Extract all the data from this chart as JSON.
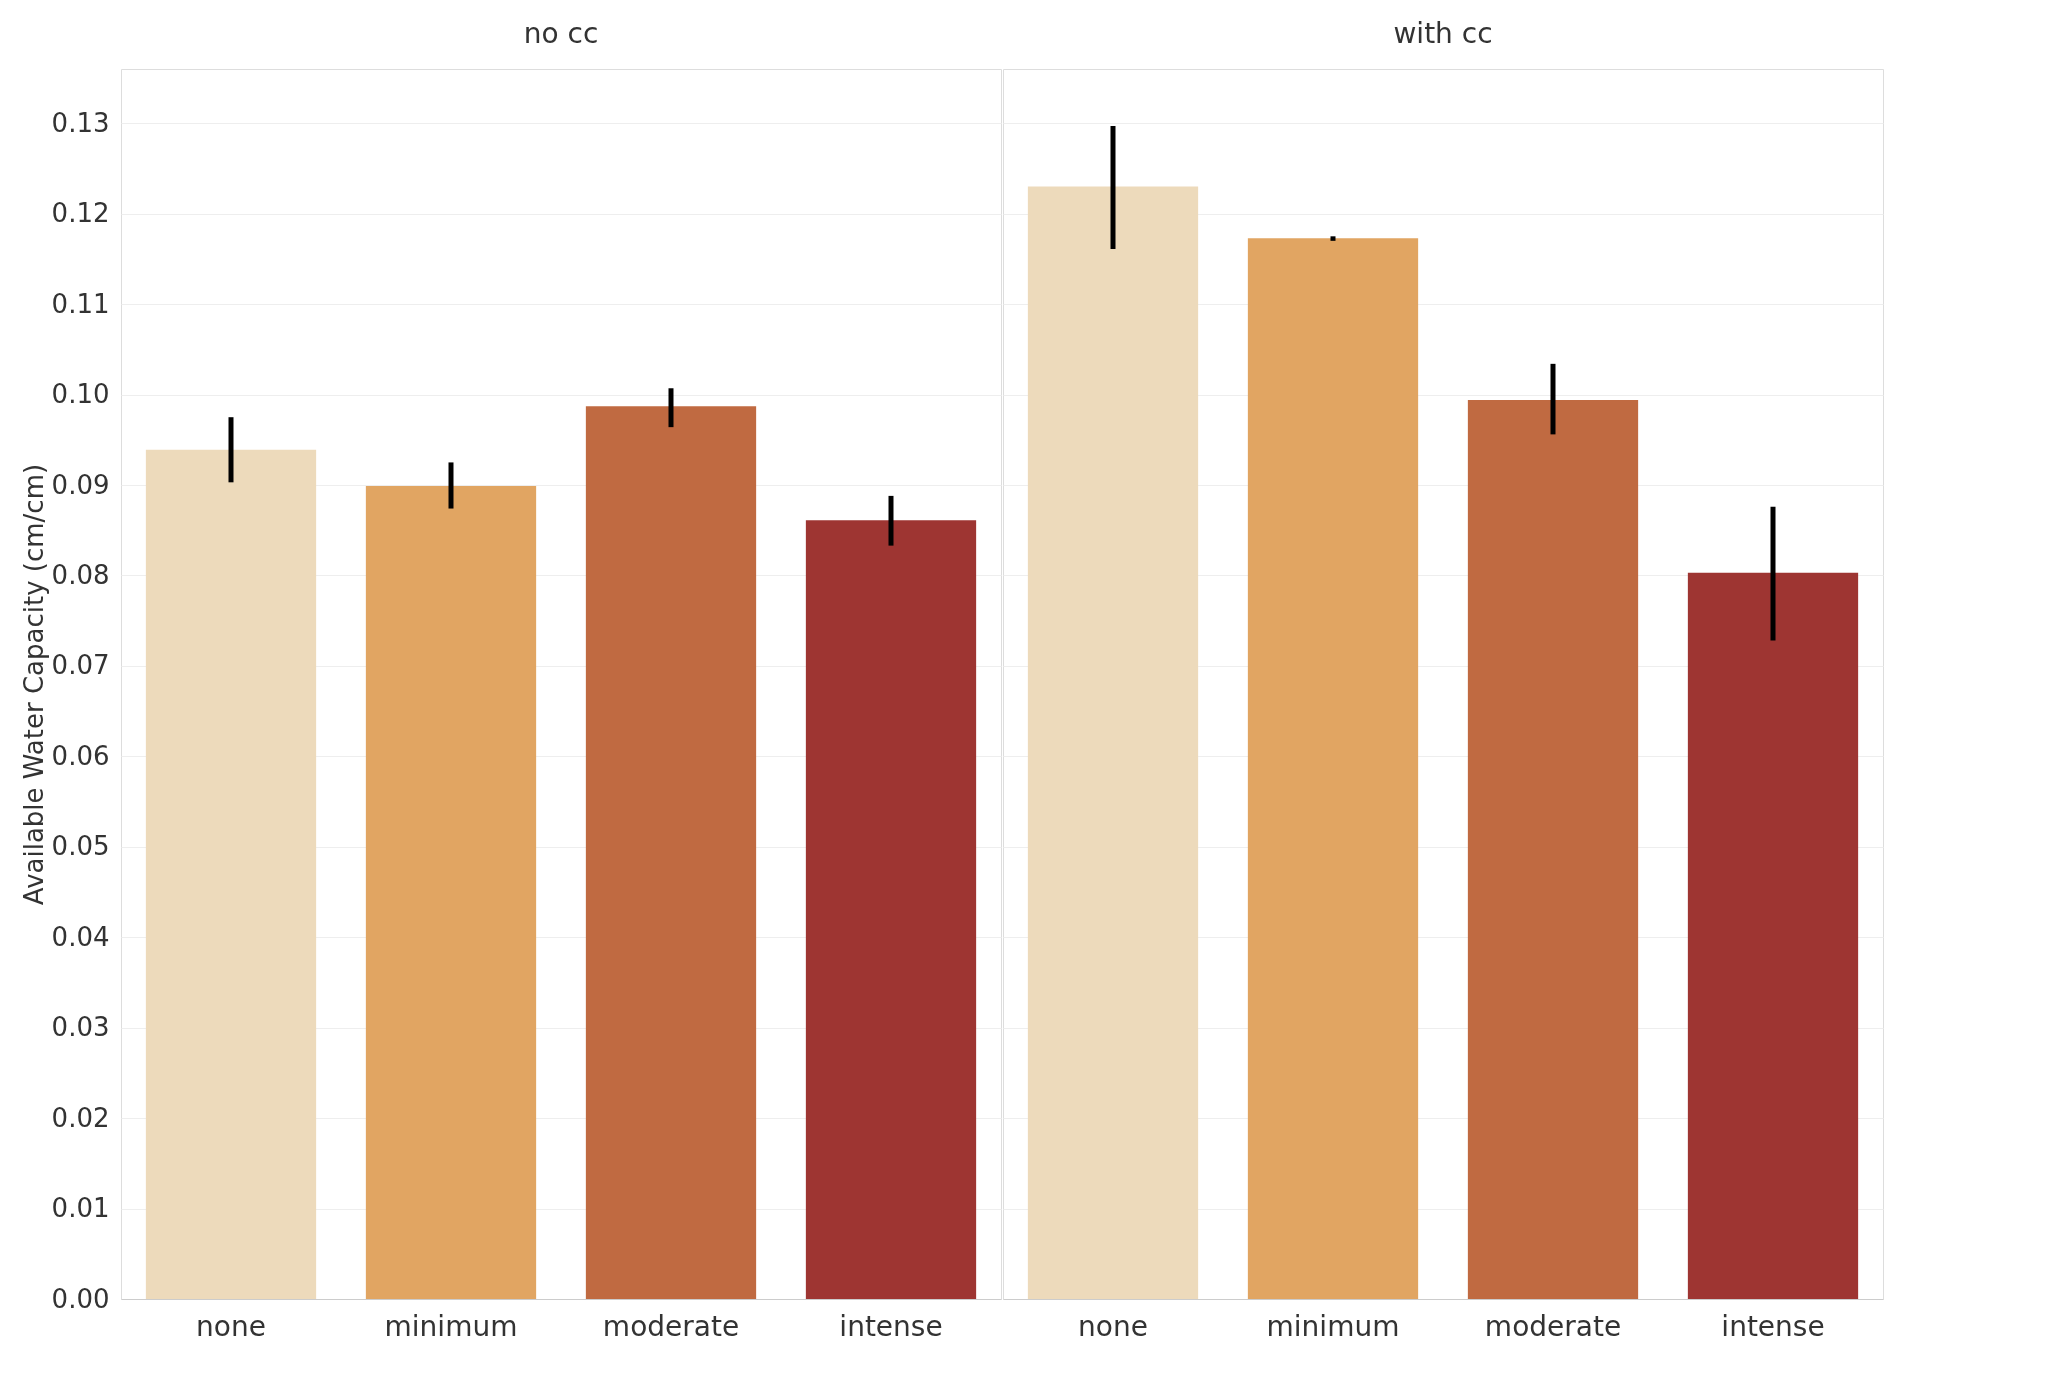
{
  "chart_data": [
    {
      "type": "bar",
      "title": "no cc",
      "ylabel": "Available Water Capacity (cm/cm)",
      "categories": [
        "none",
        "minimum",
        "moderate",
        "intense"
      ],
      "values": [
        0.0939,
        0.0899,
        0.0987,
        0.0861
      ],
      "colors": [
        "#eddabb",
        "#e1a562",
        "#c06a41",
        "#9e3532"
      ],
      "errors": [
        [
          0.0903,
          0.0975
        ],
        [
          0.0874,
          0.0925
        ],
        [
          0.0964,
          0.1007
        ],
        [
          0.0833,
          0.0888
        ]
      ],
      "ylim": [
        0,
        0.136
      ],
      "yticks": [
        {
          "value": 0,
          "label": "0.00"
        },
        0.01,
        0.02,
        0.03,
        0.04,
        0.05,
        0.06,
        0.07,
        0.08,
        0.09,
        {
          "value": 0.1,
          "label": "0.10"
        },
        0.11,
        0.12,
        0.13
      ],
      "grid": "y"
    },
    {
      "type": "bar",
      "title": "with cc",
      "categories": [
        "none",
        "minimum",
        "moderate",
        "intense"
      ],
      "values": [
        0.123,
        0.1173,
        0.0994,
        0.0803
      ],
      "colors": [
        "#eddabb",
        "#e1a562",
        "#c06a41",
        "#9e3532"
      ],
      "errors": [
        [
          0.1161,
          0.1297
        ],
        [
          0.117,
          0.1175
        ],
        [
          0.0956,
          0.1034
        ],
        [
          0.0728,
          0.0876
        ]
      ],
      "ylim": [
        0,
        0.136
      ],
      "yticks": [
        0,
        0.01,
        0.02,
        0.03,
        0.04,
        0.05,
        0.06,
        0.07,
        0.08,
        0.09,
        0.1,
        0.11,
        0.12,
        0.13
      ],
      "grid": "y",
      "tick_labels": "x"
    }
  ]
}
